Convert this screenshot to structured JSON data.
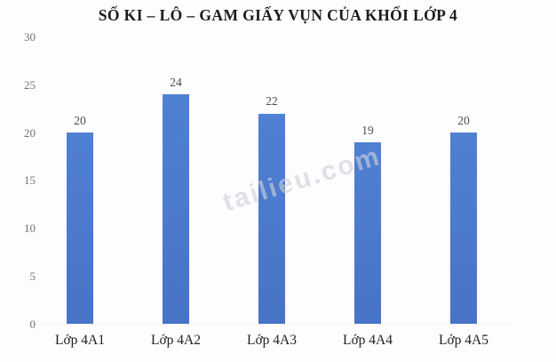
{
  "chart_data": {
    "type": "bar",
    "title": "SỐ KI – LÔ – GAM GIẤY VỤN CỦA KHỐI LỚP 4",
    "categories": [
      "Lớp 4A1",
      "Lớp 4A2",
      "Lớp 4A3",
      "Lớp 4A4",
      "Lớp 4A5"
    ],
    "values": [
      20,
      24,
      22,
      19,
      20
    ],
    "data_labels": [
      "20",
      "24",
      "22",
      "19",
      "20"
    ],
    "xlabel": "",
    "ylabel": "",
    "ylim": [
      0,
      30
    ],
    "yticks": [
      0,
      5,
      10,
      15,
      20,
      25,
      30
    ],
    "grid": false,
    "legend": false,
    "bar_color": "#4873c6",
    "bar_color_top": "#5080d2",
    "title_color": "#1b1b1b",
    "tick_label_color": "#70737c",
    "data_label_color": "#4b4b50",
    "category_label_color": "#1f1f1f"
  },
  "watermark": {
    "text": "tailieu.com"
  }
}
